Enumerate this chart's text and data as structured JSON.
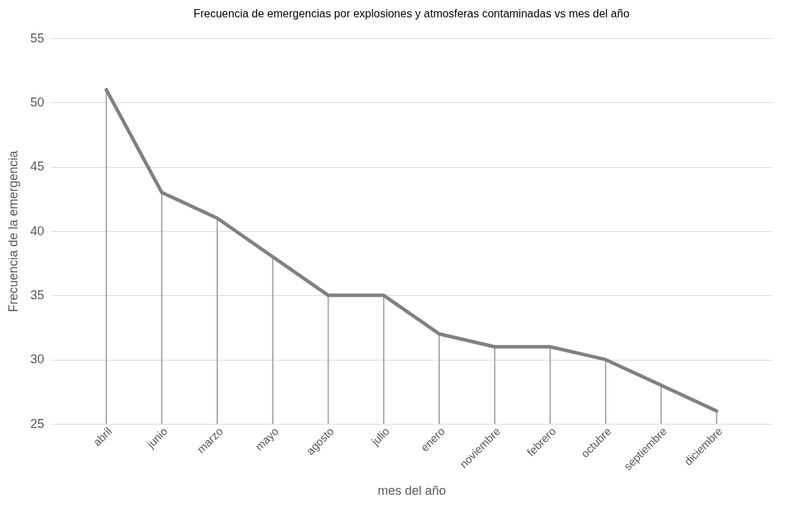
{
  "chart_data": {
    "type": "line",
    "title": "Frecuencia de emergencias por explosiones y atmosferas contaminadas vs mes del año",
    "xlabel": "mes del año",
    "ylabel": "Frecuencia de la emergencia",
    "categories": [
      "abril",
      "junio",
      "marzo",
      "mayo",
      "agosto",
      "julio",
      "enero",
      "noviembre",
      "febrero",
      "octubre",
      "septiembre",
      "diciembre"
    ],
    "series": [
      {
        "color": "#808080",
        "values": [
          51,
          43,
          41,
          38,
          35,
          35,
          32,
          31,
          31,
          30,
          28,
          26
        ],
        "errors": [
          [
            25,
            51
          ],
          [
            25,
            43
          ],
          [
            25,
            41
          ],
          [
            25,
            38
          ],
          [
            25,
            35
          ],
          [
            25,
            35
          ],
          [
            25,
            32
          ],
          [
            25,
            31
          ],
          [
            25,
            31
          ],
          [
            25,
            30
          ],
          [
            25,
            28
          ],
          [
            25,
            26
          ]
        ]
      }
    ],
    "ylim": [
      25,
      55
    ],
    "yticks": [
      25,
      30,
      35,
      40,
      45,
      50,
      55
    ],
    "grid": "y",
    "marker": "none",
    "line_style": "solid"
  }
}
